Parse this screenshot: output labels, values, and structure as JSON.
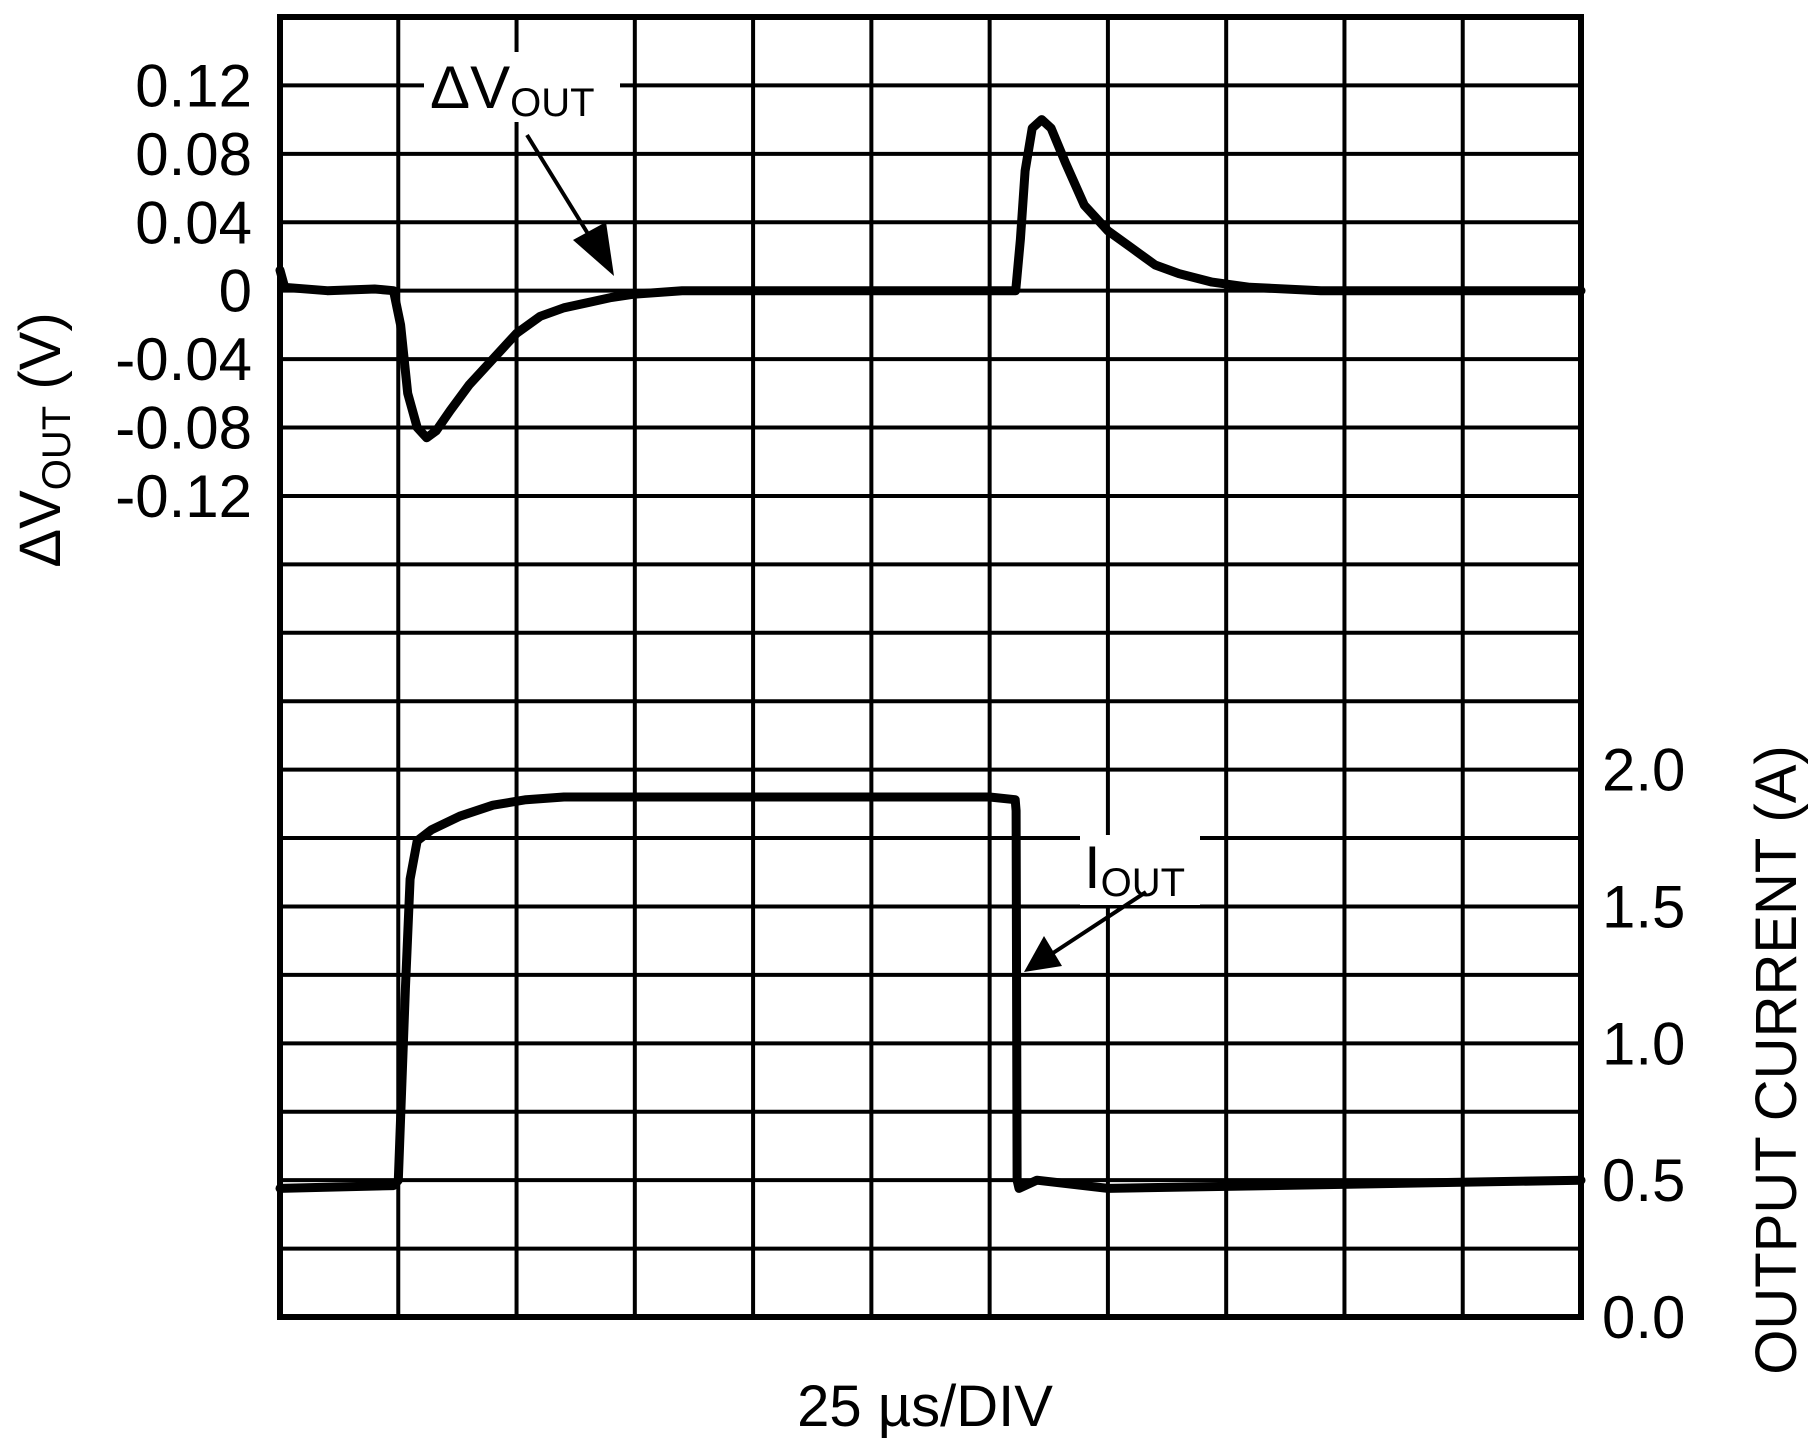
{
  "chart_data": {
    "type": "line",
    "title": "",
    "xlabel": "25 µs/DIV",
    "x_units": "µs",
    "x_per_division": 25,
    "xlim": [
      0,
      275
    ],
    "grid": true,
    "y_left": {
      "label_main": "ΔV",
      "label_sub": "OUT",
      "label_unit": " (V)",
      "ticks": [
        "0.12",
        "0.08",
        "0.04",
        "0",
        "-0.04",
        "-0.08",
        "-0.12"
      ],
      "tick_values": [
        0.12,
        0.08,
        0.04,
        0,
        -0.04,
        -0.08,
        -0.12
      ],
      "ylim": [
        -0.6,
        0.16
      ]
    },
    "y_right": {
      "label": "OUTPUT CURRENT (A)",
      "ticks": [
        "2.0",
        "1.5",
        "1.0",
        "0.5",
        "0.0"
      ],
      "tick_values": [
        2.0,
        1.5,
        1.0,
        0.5,
        0.0
      ],
      "ylim": [
        0,
        4.75
      ]
    },
    "series": [
      {
        "name": "ΔV",
        "name_sub": "OUT",
        "axis": "left",
        "points": [
          [
            0,
            0.012
          ],
          [
            1,
            0.002
          ],
          [
            10,
            0
          ],
          [
            20,
            0.001
          ],
          [
            24,
            0
          ],
          [
            25.5,
            -0.02
          ],
          [
            27,
            -0.06
          ],
          [
            29,
            -0.08
          ],
          [
            31,
            -0.086
          ],
          [
            33,
            -0.082
          ],
          [
            36,
            -0.07
          ],
          [
            40,
            -0.055
          ],
          [
            45,
            -0.04
          ],
          [
            50,
            -0.025
          ],
          [
            55,
            -0.015
          ],
          [
            60,
            -0.01
          ],
          [
            65,
            -0.007
          ],
          [
            70,
            -0.004
          ],
          [
            75,
            -0.002
          ],
          [
            85,
            0
          ],
          [
            120,
            0
          ],
          [
            150,
            0
          ],
          [
            155.5,
            0
          ],
          [
            156.5,
            0.03
          ],
          [
            157.5,
            0.07
          ],
          [
            159,
            0.095
          ],
          [
            161,
            0.1
          ],
          [
            163,
            0.095
          ],
          [
            166,
            0.075
          ],
          [
            170,
            0.05
          ],
          [
            175,
            0.035
          ],
          [
            180,
            0.025
          ],
          [
            185,
            0.015
          ],
          [
            190,
            0.01
          ],
          [
            197,
            0.005
          ],
          [
            205,
            0.002
          ],
          [
            220,
            0
          ],
          [
            275,
            0
          ]
        ]
      },
      {
        "name": "I",
        "name_sub": "OUT",
        "axis": "right",
        "points": [
          [
            0,
            0.47
          ],
          [
            24,
            0.48
          ],
          [
            25,
            0.5
          ],
          [
            26.5,
            1.2
          ],
          [
            27.5,
            1.6
          ],
          [
            29,
            1.74
          ],
          [
            32,
            1.78
          ],
          [
            38,
            1.83
          ],
          [
            45,
            1.87
          ],
          [
            52,
            1.89
          ],
          [
            60,
            1.9
          ],
          [
            150,
            1.9
          ],
          [
            155.4,
            1.89
          ],
          [
            155.6,
            1.85
          ],
          [
            155.8,
            0.5
          ],
          [
            156.2,
            0.47
          ],
          [
            160,
            0.5
          ],
          [
            175,
            0.47
          ],
          [
            275,
            0.5
          ]
        ]
      }
    ]
  }
}
